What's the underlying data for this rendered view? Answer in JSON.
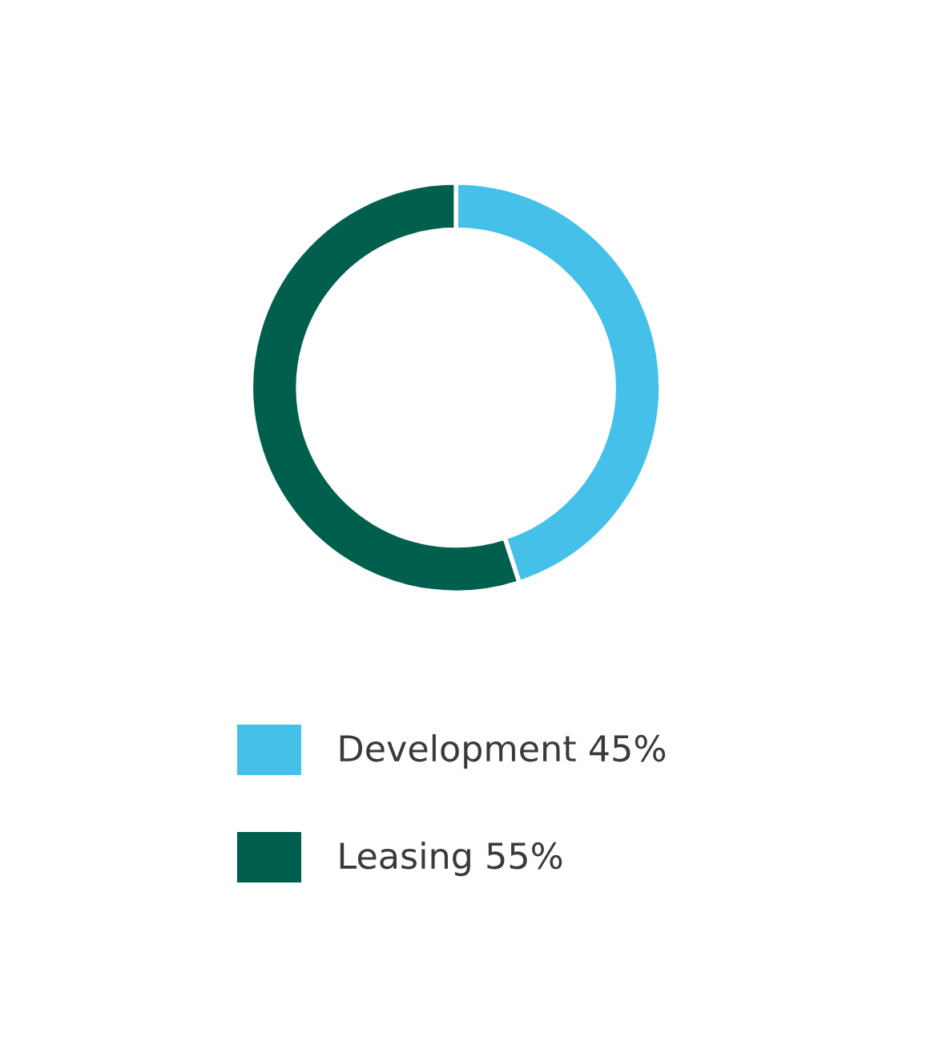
{
  "chart_data": {
    "type": "donut",
    "categories": [
      "Development 45%",
      "Leasing 55%"
    ],
    "values": [
      45,
      55
    ],
    "colors": [
      "#45c0e8",
      "#00604d"
    ],
    "legend": "bottom"
  }
}
